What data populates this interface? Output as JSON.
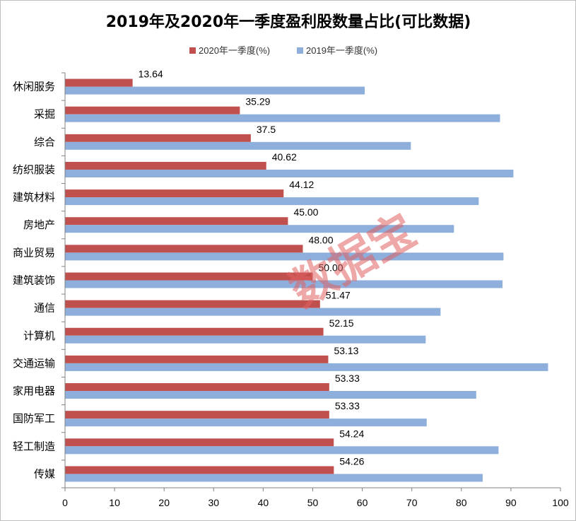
{
  "chart_data": {
    "type": "bar",
    "orientation": "horizontal",
    "title": "2019年及2020年一季度盈利股数量占比(可比数据)",
    "categories": [
      "休闲服务",
      "采掘",
      "综合",
      "纺织服装",
      "建筑材料",
      "房地产",
      "商业贸易",
      "建筑装饰",
      "通信",
      "计算机",
      "交通运输",
      "家用电器",
      "国防军工",
      "轻工制造",
      "传媒"
    ],
    "series": [
      {
        "name": "2020年一季度(%)",
        "color": "#c0504d",
        "values": [
          13.64,
          35.29,
          37.5,
          40.62,
          44.12,
          45.0,
          48.0,
          50.0,
          51.47,
          52.15,
          53.13,
          53.33,
          53.33,
          54.24,
          54.26
        ],
        "labels": [
          "13.64",
          "35.29",
          "37.5",
          "40.62",
          "44.12",
          "45.00",
          "48.00",
          "50.00",
          "51.47",
          "52.15",
          "53.13",
          "53.33",
          "53.33",
          "54.24",
          "54.26"
        ]
      },
      {
        "name": "2019年一季度(%)",
        "color": "#8eaedb",
        "values": [
          60.5,
          87.8,
          69.8,
          90.5,
          83.5,
          78.5,
          88.5,
          88.3,
          75.8,
          72.8,
          97.5,
          83.0,
          73.0,
          87.5,
          84.3
        ]
      }
    ],
    "xlim": [
      0,
      100
    ],
    "xticks": [
      "0",
      "10",
      "20",
      "30",
      "40",
      "50",
      "60",
      "70",
      "80",
      "90",
      "100"
    ],
    "legend_position": "top",
    "grid": false
  },
  "watermark": "数据宝"
}
